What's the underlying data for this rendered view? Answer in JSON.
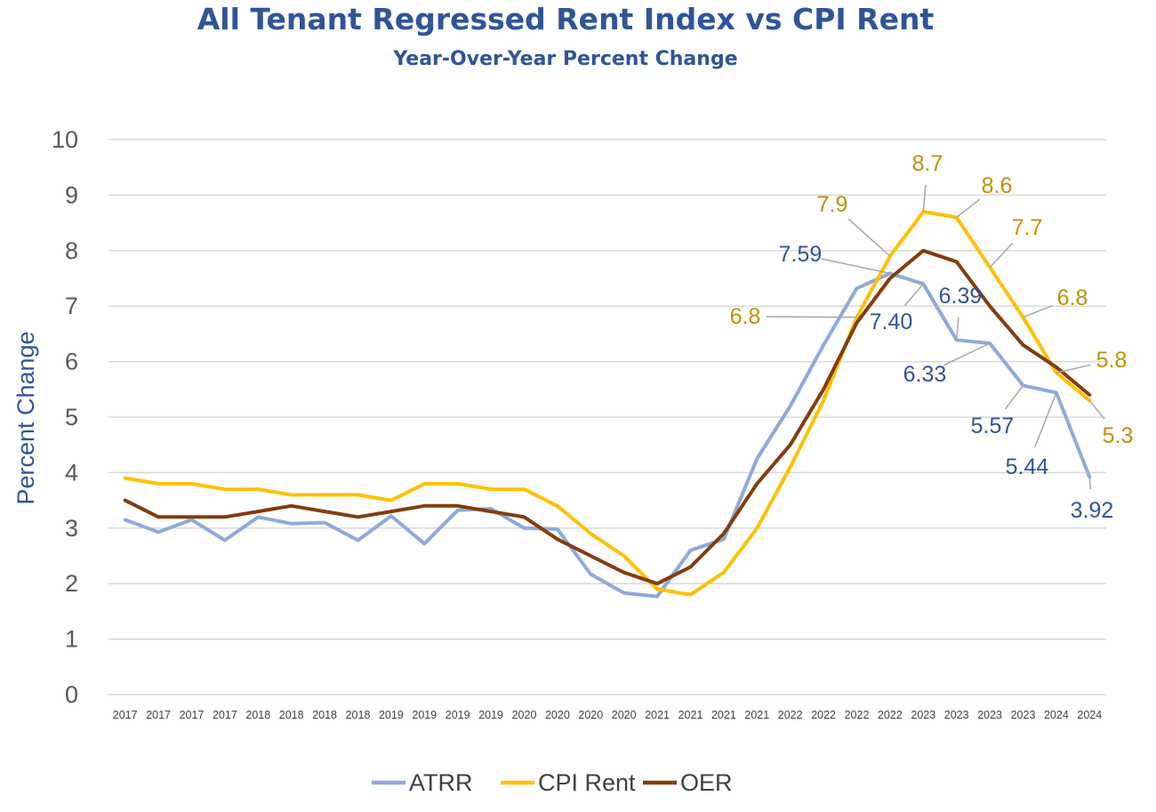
{
  "chart_data": {
    "type": "line",
    "title": "All Tenant Regressed Rent Index vs CPI Rent",
    "subtitle": "Year-Over-Year Percent Change",
    "ylabel": "Percent Change",
    "xlabel": "",
    "ylim": [
      0,
      10
    ],
    "yticks": [
      "0",
      "1",
      "2",
      "3",
      "4",
      "5",
      "6",
      "7",
      "8",
      "9",
      "10"
    ],
    "grid": true,
    "legend_position": "bottom",
    "categories": [
      "2017",
      "2017",
      "2017",
      "2017",
      "2018",
      "2018",
      "2018",
      "2018",
      "2019",
      "2019",
      "2019",
      "2019",
      "2020",
      "2020",
      "2020",
      "2020",
      "2021",
      "2021",
      "2021",
      "2021",
      "2022",
      "2022",
      "2022",
      "2022",
      "2023",
      "2023",
      "2023",
      "2023",
      "2024",
      "2024"
    ],
    "series": [
      {
        "name": "ATRR",
        "color": "#8eaadb",
        "values": [
          3.15,
          2.93,
          3.15,
          2.78,
          3.2,
          3.08,
          3.1,
          2.78,
          3.22,
          2.72,
          3.32,
          3.35,
          3.0,
          2.98,
          2.17,
          1.83,
          1.77,
          2.6,
          2.8,
          4.25,
          5.2,
          6.3,
          7.32,
          7.59,
          7.4,
          6.39,
          6.33,
          5.57,
          5.44,
          3.92
        ]
      },
      {
        "name": "CPI Rent",
        "color": "#ffc000",
        "values": [
          3.9,
          3.8,
          3.8,
          3.7,
          3.7,
          3.6,
          3.6,
          3.6,
          3.5,
          3.8,
          3.8,
          3.7,
          3.7,
          3.4,
          2.9,
          2.5,
          1.9,
          1.8,
          2.2,
          3.0,
          4.1,
          5.3,
          6.8,
          7.9,
          8.7,
          8.6,
          7.7,
          6.8,
          5.8,
          5.3
        ]
      },
      {
        "name": "OER",
        "color": "#843c0c",
        "values": [
          3.5,
          3.2,
          3.2,
          3.2,
          3.3,
          3.4,
          3.3,
          3.2,
          3.3,
          3.4,
          3.4,
          3.3,
          3.2,
          2.8,
          2.5,
          2.2,
          2.0,
          2.3,
          2.9,
          3.8,
          4.5,
          5.5,
          6.7,
          7.5,
          8.0,
          7.8,
          7.0,
          6.3,
          5.9,
          5.4
        ]
      }
    ],
    "annotations": [
      {
        "series": "ATRR",
        "index": 23,
        "text": "7.59"
      },
      {
        "series": "ATRR",
        "index": 24,
        "text": "7.40"
      },
      {
        "series": "ATRR",
        "index": 25,
        "text": "6.39"
      },
      {
        "series": "ATRR",
        "index": 26,
        "text": "6.33"
      },
      {
        "series": "ATRR",
        "index": 27,
        "text": "5.57"
      },
      {
        "series": "ATRR",
        "index": 28,
        "text": "5.44"
      },
      {
        "series": "ATRR",
        "index": 29,
        "text": "3.92"
      },
      {
        "series": "CPI Rent",
        "index": 22,
        "text": "6.8"
      },
      {
        "series": "CPI Rent",
        "index": 23,
        "text": "7.9"
      },
      {
        "series": "CPI Rent",
        "index": 24,
        "text": "8.7"
      },
      {
        "series": "CPI Rent",
        "index": 25,
        "text": "8.6"
      },
      {
        "series": "CPI Rent",
        "index": 26,
        "text": "7.7"
      },
      {
        "series": "CPI Rent",
        "index": 27,
        "text": "6.8"
      },
      {
        "series": "CPI Rent",
        "index": 28,
        "text": "5.8"
      },
      {
        "series": "CPI Rent",
        "index": 29,
        "text": "5.3"
      }
    ]
  }
}
